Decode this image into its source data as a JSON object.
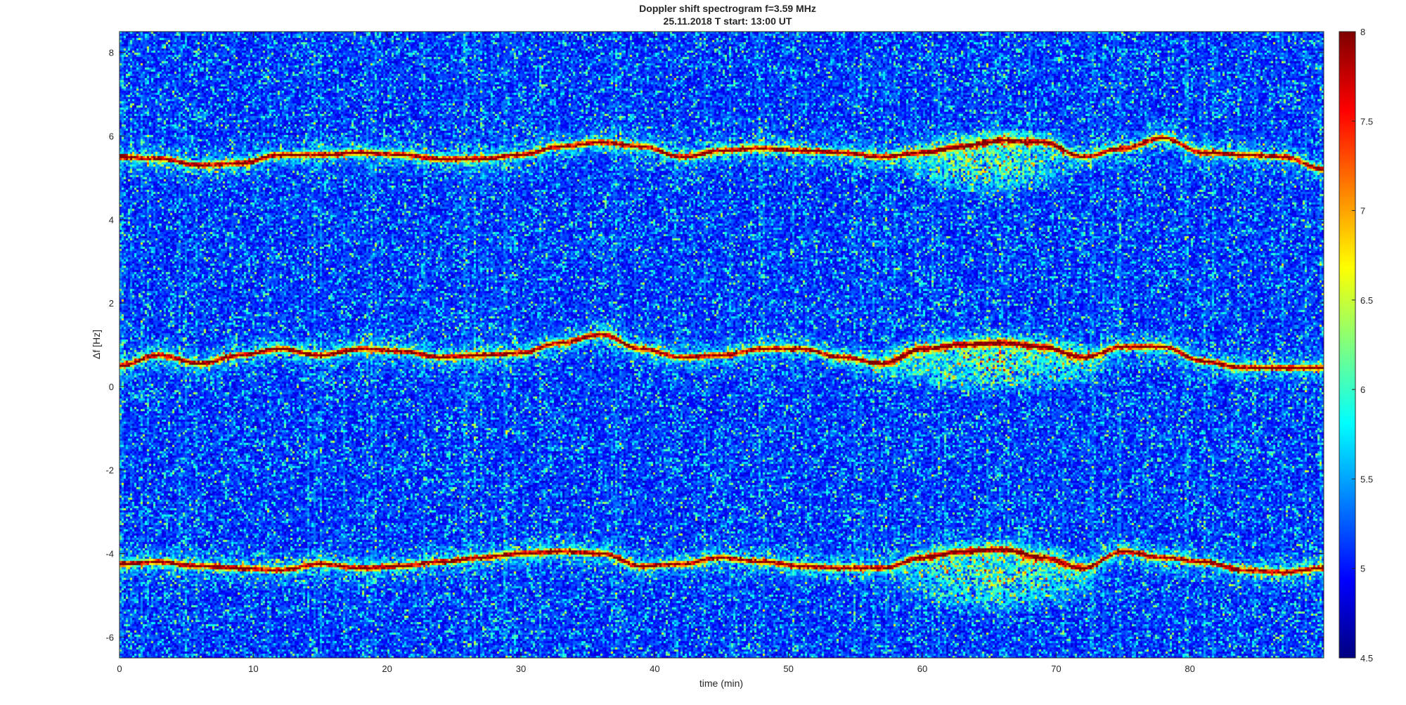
{
  "chart_data": {
    "type": "heatmap",
    "title": "Doppler shift spectrogram f=3.59 MHz",
    "subtitle": "25.11.2018   T start: 13:00 UT",
    "xlabel": "time (min)",
    "ylabel": "Δf [Hz]",
    "xlim": [
      0,
      90
    ],
    "ylim": [
      -6.5,
      8.5
    ],
    "xticks": [
      "0",
      "10",
      "20",
      "30",
      "40",
      "50",
      "60",
      "70",
      "80"
    ],
    "xtick_values": [
      0,
      10,
      20,
      30,
      40,
      50,
      60,
      70,
      80
    ],
    "yticks": [
      "-6",
      "-4",
      "-2",
      "0",
      "2",
      "4",
      "6",
      "8"
    ],
    "ytick_values": [
      -6,
      -4,
      -2,
      0,
      2,
      4,
      6,
      8
    ],
    "colorbar": {
      "range": [
        4.5,
        8
      ],
      "ticks": [
        "4.5",
        "5",
        "5.5",
        "6",
        "6.5",
        "7",
        "7.5",
        "8"
      ],
      "tick_values": [
        4.5,
        5,
        5.5,
        6,
        6.5,
        7,
        7.5,
        8
      ],
      "colormap": "jet"
    },
    "traces": [
      {
        "x": [
          0,
          3,
          6,
          9,
          12,
          15,
          18,
          21,
          24,
          27,
          30,
          33,
          36,
          39,
          42,
          45,
          48,
          51,
          54,
          57,
          60,
          63,
          66,
          69,
          72,
          75,
          78,
          81,
          84,
          87,
          90
        ],
        "y": [
          5.5,
          5.45,
          5.3,
          5.35,
          5.55,
          5.55,
          5.6,
          5.55,
          5.45,
          5.45,
          5.55,
          5.75,
          5.85,
          5.75,
          5.5,
          5.65,
          5.7,
          5.65,
          5.6,
          5.5,
          5.6,
          5.75,
          5.9,
          5.85,
          5.5,
          5.7,
          5.95,
          5.6,
          5.55,
          5.5,
          5.2
        ]
      },
      {
        "x": [
          0,
          3,
          6,
          9,
          12,
          15,
          18,
          21,
          24,
          27,
          30,
          33,
          36,
          39,
          42,
          45,
          48,
          51,
          54,
          57,
          60,
          63,
          66,
          69,
          72,
          75,
          78,
          81,
          84,
          87,
          90
        ],
        "y": [
          0.5,
          0.75,
          0.55,
          0.75,
          0.9,
          0.75,
          0.9,
          0.85,
          0.7,
          0.75,
          0.8,
          1.05,
          1.25,
          0.9,
          0.7,
          0.75,
          0.9,
          0.9,
          0.7,
          0.55,
          0.9,
          1.0,
          1.05,
          0.95,
          0.7,
          0.95,
          0.95,
          0.6,
          0.45,
          0.45,
          0.45
        ]
      },
      {
        "x": [
          0,
          3,
          6,
          9,
          12,
          15,
          18,
          21,
          24,
          27,
          30,
          33,
          36,
          39,
          42,
          45,
          48,
          51,
          54,
          57,
          60,
          63,
          66,
          69,
          72,
          75,
          78,
          81,
          84,
          87,
          90
        ],
        "y": [
          -4.25,
          -4.2,
          -4.3,
          -4.35,
          -4.4,
          -4.25,
          -4.35,
          -4.3,
          -4.2,
          -4.1,
          -4.0,
          -3.95,
          -4.0,
          -4.3,
          -4.25,
          -4.1,
          -4.2,
          -4.3,
          -4.35,
          -4.35,
          -4.1,
          -3.95,
          -3.9,
          -4.1,
          -4.35,
          -3.95,
          -4.1,
          -4.2,
          -4.4,
          -4.45,
          -4.35
        ]
      }
    ],
    "diffuse_regions": [
      {
        "x": [
          58,
          72
        ],
        "y": [
          4.5,
          6.2
        ]
      },
      {
        "x": [
          55,
          75
        ],
        "y": [
          -0.2,
          1.3
        ]
      },
      {
        "x": [
          57,
          74
        ],
        "y": [
          -5.5,
          -3.6
        ]
      }
    ]
  }
}
